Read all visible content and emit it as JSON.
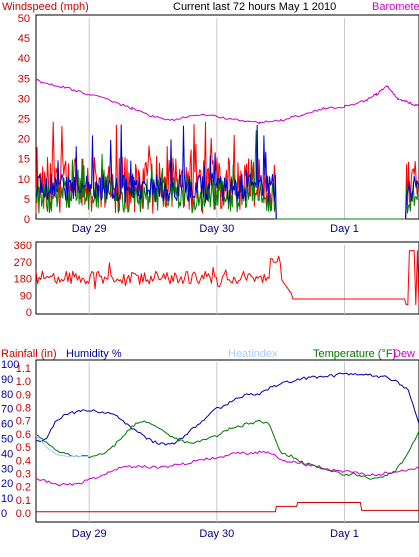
{
  "header": {
    "windspeed_label": "Windspeed (mph)",
    "title": "Current last 72 hours May 1 2010",
    "barometer_label": "Barometer"
  },
  "lower_header": {
    "rainfall_label": "Rainfall (in)",
    "humidity_label": "Humidity %",
    "heatindex_label": "Heatindex",
    "temperature_label": "Temperature (°F)",
    "dewpoint_label": "Dew P"
  },
  "colors": {
    "windspeed": "#ff0000",
    "gust": "#cc0000",
    "wind_green": "#008000",
    "wind_blue": "#0000cc",
    "barometer": "#cc00cc",
    "direction": "#ff0000",
    "humidity": "#0000aa",
    "temperature": "#007700",
    "dewpoint": "#cc00cc",
    "heatindex": "#aaccff",
    "rainfall": "#cc0000",
    "grid": "#c8c8c8"
  },
  "chart_data": [
    {
      "type": "line",
      "name": "windspeed-panel",
      "x_ticks": [
        "Day 29",
        "Day 30",
        "Day 1"
      ],
      "x_range_hours": [
        0,
        72
      ],
      "day_marker_hours": [
        10,
        34,
        58
      ],
      "ylim": [
        0,
        50
      ],
      "y_ticks": [
        0,
        5,
        10,
        15,
        20,
        25,
        30,
        35,
        40,
        45,
        50
      ],
      "series": [
        {
          "name": "Windspeed (mph)",
          "key": "windspeed",
          "values": []
        },
        {
          "name": "Barometer",
          "key": "barometer",
          "x": [
            0,
            3,
            6,
            10,
            14,
            18,
            22,
            26,
            30,
            34,
            38,
            42,
            46,
            50,
            54,
            58,
            62,
            64,
            66,
            68,
            70,
            72
          ],
          "values": [
            34.5,
            33.5,
            32.5,
            31.0,
            29.5,
            27.5,
            25.5,
            24.5,
            26.0,
            25.5,
            24.5,
            24.0,
            24.5,
            26.0,
            27.5,
            28.0,
            29.5,
            31.0,
            33.0,
            30.0,
            29.0,
            28.0
          ]
        }
      ]
    },
    {
      "type": "line",
      "name": "direction-panel",
      "ylim": [
        0,
        360
      ],
      "y_ticks": [
        0,
        90,
        180,
        270,
        360
      ],
      "series": [
        {
          "name": "Wind direction",
          "key": "direction",
          "values": []
        }
      ]
    },
    {
      "type": "line",
      "name": "lower-panel",
      "x_ticks": [
        "Day 29",
        "Day 30",
        "Day 1"
      ],
      "y_ticks_humidity": [
        0,
        10,
        20,
        30,
        40,
        50,
        60,
        70,
        80,
        90,
        100
      ],
      "y_ticks_rain": [
        0.0,
        0.1,
        0.2,
        0.3,
        0.4,
        0.5,
        0.6,
        0.7,
        0.8,
        0.9,
        1.0,
        1.1
      ],
      "series": [
        {
          "name": "Humidity %",
          "key": "humidity",
          "x": [
            0,
            2,
            4,
            6,
            8,
            10,
            12,
            14,
            16,
            18,
            20,
            22,
            24,
            26,
            28,
            30,
            32,
            34,
            36,
            38,
            40,
            42,
            44,
            46,
            48,
            50,
            52,
            54,
            56,
            58,
            60,
            62,
            64,
            66,
            68,
            70,
            72
          ],
          "values": [
            48,
            50,
            63,
            67,
            68,
            69,
            68,
            67,
            63,
            57,
            52,
            48,
            46,
            47,
            52,
            58,
            64,
            70,
            73,
            77,
            80,
            80,
            84,
            87,
            88,
            90,
            91,
            92,
            92,
            94,
            93,
            93,
            92,
            91,
            88,
            82,
            60
          ]
        },
        {
          "name": "Temperature (°F)",
          "key": "temperature",
          "x": [
            0,
            2,
            4,
            6,
            8,
            10,
            12,
            14,
            16,
            18,
            20,
            22,
            24,
            26,
            28,
            30,
            32,
            34,
            36,
            38,
            40,
            42,
            44,
            46,
            48,
            50,
            52,
            54,
            56,
            58,
            60,
            62,
            64,
            66,
            68,
            70,
            72
          ],
          "values": [
            52,
            48,
            42,
            39,
            38,
            38,
            39,
            43,
            50,
            58,
            62,
            60,
            55,
            50,
            48,
            47,
            49,
            52,
            56,
            58,
            60,
            62,
            59,
            40,
            38,
            34,
            32,
            30,
            28,
            26,
            26,
            24,
            23,
            25,
            30,
            40,
            55
          ]
        },
        {
          "name": "Dew Point",
          "key": "dewpoint",
          "x": [
            0,
            2,
            4,
            6,
            8,
            10,
            12,
            14,
            16,
            18,
            20,
            22,
            24,
            26,
            28,
            30,
            32,
            34,
            36,
            38,
            40,
            42,
            44,
            46,
            48,
            50,
            52,
            54,
            56,
            58,
            60,
            62,
            64,
            66,
            68,
            70,
            72
          ],
          "values": [
            24,
            21,
            19,
            19,
            20,
            22,
            25,
            28,
            30,
            31,
            31,
            31,
            31,
            32,
            33,
            35,
            36,
            37,
            39,
            40,
            40,
            41,
            40,
            36,
            34,
            33,
            32,
            30,
            29,
            28,
            27,
            26,
            26,
            27,
            28,
            29,
            31
          ]
        },
        {
          "name": "Heatindex",
          "key": "heatindex",
          "x": [
            0,
            2,
            4,
            6,
            8,
            10
          ],
          "values": [
            52,
            44,
            39,
            38,
            38,
            38
          ]
        },
        {
          "name": "Rainfall (in)",
          "key": "rainfall",
          "x": [
            0,
            45,
            45.2,
            49,
            49.2,
            61,
            61.2,
            72
          ],
          "values": [
            0.01,
            0.01,
            0.05,
            0.05,
            0.08,
            0.08,
            0.02,
            0.02
          ]
        }
      ]
    }
  ]
}
